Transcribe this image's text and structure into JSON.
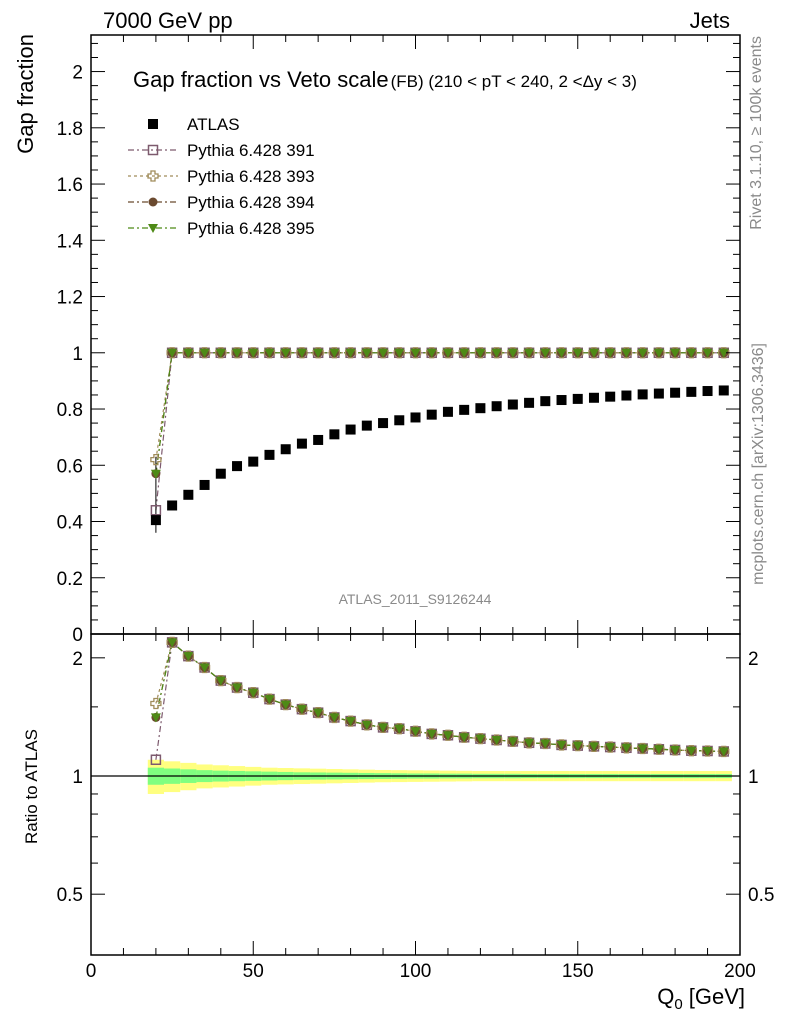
{
  "header": {
    "left": "7000 GeV pp",
    "right": "Jets"
  },
  "side_labels": {
    "rivet": "Rivet 3.1.10, ≥ 100k events",
    "mcplots": "mcplots.cern.ch [arXiv:1306.3436]"
  },
  "chart_data": [
    {
      "type": "scatter",
      "title": "Gap fraction vs Veto scale",
      "subtitle": "(FB) (210 < pT < 240, 2 <Δy < 3)",
      "ylabel": "Gap fraction",
      "xlim": [
        0,
        200
      ],
      "ylim": [
        0,
        2.13
      ],
      "yticks": [
        0,
        0.2,
        0.4,
        0.6,
        0.8,
        1,
        1.2,
        1.4,
        1.6,
        1.8,
        2
      ],
      "ytick_labels": [
        "0",
        "0.2",
        "0.4",
        "0.6",
        "0.8",
        "1",
        "1.2",
        "1.4",
        "1.6",
        "1.8",
        "2"
      ],
      "watermark": "ATLAS_2011_S9126244",
      "x": [
        20,
        25,
        30,
        35,
        40,
        45,
        50,
        55,
        60,
        65,
        70,
        75,
        80,
        85,
        90,
        95,
        100,
        105,
        110,
        115,
        120,
        125,
        130,
        135,
        140,
        145,
        150,
        155,
        160,
        165,
        170,
        175,
        180,
        185,
        190,
        195
      ],
      "series": [
        {
          "name": "ATLAS",
          "marker": "filled-square",
          "color": "#000000",
          "values": [
            0.405,
            0.457,
            0.495,
            0.53,
            0.57,
            0.597,
            0.613,
            0.637,
            0.657,
            0.677,
            0.69,
            0.71,
            0.727,
            0.741,
            0.75,
            0.76,
            0.77,
            0.78,
            0.79,
            0.797,
            0.803,
            0.81,
            0.816,
            0.822,
            0.828,
            0.832,
            0.836,
            0.84,
            0.844,
            0.848,
            0.852,
            0.855,
            0.858,
            0.861,
            0.864,
            0.866
          ]
        },
        {
          "name": "Pythia 6.428 391",
          "marker": "open-square",
          "color": "#7d5a6e",
          "values": [
            0.44,
            1,
            1,
            1,
            1,
            1,
            1,
            1,
            1,
            1,
            1,
            1,
            1,
            1,
            1,
            1,
            1,
            1,
            1,
            1,
            1,
            1,
            1,
            1,
            1,
            1,
            1,
            1,
            1,
            1,
            1,
            1,
            1,
            1,
            1,
            1
          ]
        },
        {
          "name": "Pythia 6.428 393",
          "marker": "open-cross",
          "color": "#a08c5a",
          "values": [
            0.62,
            1,
            1,
            1,
            1,
            1,
            1,
            1,
            1,
            1,
            1,
            1,
            1,
            1,
            1,
            1,
            1,
            1,
            1,
            1,
            1,
            1,
            1,
            1,
            1,
            1,
            1,
            1,
            1,
            1,
            1,
            1,
            1,
            1,
            1,
            1
          ]
        },
        {
          "name": "Pythia 6.428 394",
          "marker": "filled-circle",
          "color": "#6b4a2f",
          "values": [
            0.57,
            1,
            1,
            1,
            1,
            1,
            1,
            1,
            1,
            1,
            1,
            1,
            1,
            1,
            1,
            1,
            1,
            1,
            1,
            1,
            1,
            1,
            1,
            1,
            1,
            1,
            1,
            1,
            1,
            1,
            1,
            1,
            1,
            1,
            1,
            1
          ]
        },
        {
          "name": "Pythia 6.428 395",
          "marker": "filled-triangle-down",
          "color": "#4e8a16",
          "values": [
            0.57,
            1,
            1,
            1,
            1,
            1,
            1,
            1,
            1,
            1,
            1,
            1,
            1,
            1,
            1,
            1,
            1,
            1,
            1,
            1,
            1,
            1,
            1,
            1,
            1,
            1,
            1,
            1,
            1,
            1,
            1,
            1,
            1,
            1,
            1,
            1
          ]
        }
      ]
    },
    {
      "type": "scatter",
      "ylabel": "Ratio to ATLAS",
      "xlabel": "Q",
      "xlabel_sub": "0",
      "xlabel_unit": "[GeV]",
      "xlim": [
        0,
        200
      ],
      "ylim": [
        0.35,
        2.3
      ],
      "xticks": [
        0,
        50,
        100,
        150,
        200
      ],
      "xtick_labels": [
        "0",
        "50",
        "100",
        "150",
        "200"
      ],
      "yticks": [
        0.5,
        1,
        2
      ],
      "ytick_labels": [
        "0.5",
        "1",
        "2"
      ],
      "reference_line": 1,
      "band_color_outer": "#ffff80",
      "band_color_inner": "#80ff80",
      "x": [
        20,
        25,
        30,
        35,
        40,
        45,
        50,
        55,
        60,
        65,
        70,
        75,
        80,
        85,
        90,
        95,
        100,
        105,
        110,
        115,
        120,
        125,
        130,
        135,
        140,
        145,
        150,
        155,
        160,
        165,
        170,
        175,
        180,
        185,
        190,
        195
      ],
      "ratio_values": [
        1.1,
        2.19,
        2.02,
        1.89,
        1.75,
        1.68,
        1.63,
        1.57,
        1.52,
        1.48,
        1.45,
        1.41,
        1.38,
        1.35,
        1.33,
        1.32,
        1.3,
        1.28,
        1.27,
        1.255,
        1.245,
        1.235,
        1.225,
        1.215,
        1.21,
        1.2,
        1.195,
        1.19,
        1.185,
        1.18,
        1.175,
        1.17,
        1.165,
        1.16,
        1.158,
        1.155
      ],
      "first_point_ratios": [
        1.1,
        1.53,
        1.41,
        1.41
      ],
      "band_outer_halfwidth": [
        0.1,
        0.09,
        0.08,
        0.07,
        0.065,
        0.06,
        0.055,
        0.05,
        0.048,
        0.046,
        0.044,
        0.042,
        0.04,
        0.038,
        0.036,
        0.035,
        0.034,
        0.033,
        0.032,
        0.031,
        0.03,
        0.03,
        0.03,
        0.03,
        0.03,
        0.03,
        0.03,
        0.03,
        0.03,
        0.03,
        0.03,
        0.03,
        0.03,
        0.03,
        0.03,
        0.03
      ],
      "band_inner_halfwidth": [
        0.05,
        0.045,
        0.04,
        0.035,
        0.032,
        0.03,
        0.028,
        0.026,
        0.024,
        0.022,
        0.021,
        0.02,
        0.019,
        0.018,
        0.017,
        0.016,
        0.015,
        0.015,
        0.014,
        0.014,
        0.013,
        0.013,
        0.013,
        0.012,
        0.012,
        0.012,
        0.012,
        0.012,
        0.012,
        0.012,
        0.012,
        0.012,
        0.012,
        0.012,
        0.012,
        0.012
      ]
    }
  ]
}
